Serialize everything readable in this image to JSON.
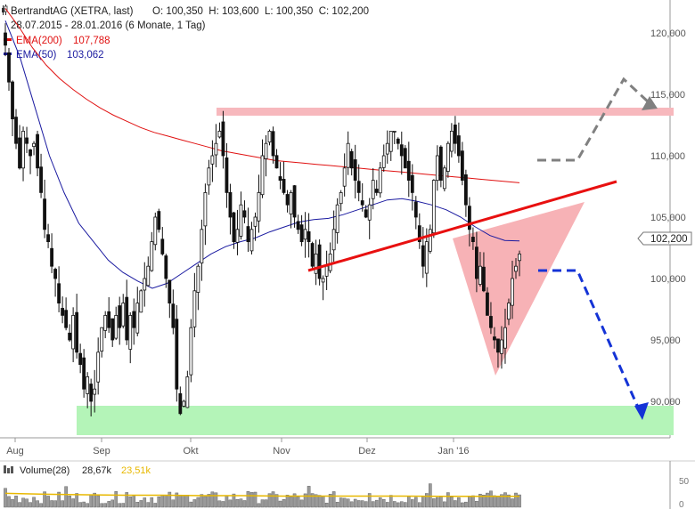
{
  "header": {
    "title": "BertrandtAG (XETRA, last)",
    "ohlc": "O: 100,350  H: 103,600  L: 100,350  C: 102,200",
    "range": "28.07.2015 - 28.01.2016 (6 Monate, 1 Tag)"
  },
  "legend": [
    {
      "label": "EMA(200)",
      "value": "107,788",
      "color": "#e01010"
    },
    {
      "label": "EMA(50)",
      "value": "103,062",
      "color": "#1a1aa0"
    }
  ],
  "volume": {
    "label": "Volume(28)",
    "v1": "28,67k",
    "v2": "23,51k",
    "v2_color": "#e8b800"
  },
  "last_price": "102,200",
  "y_ticks": [
    "120,000",
    "115,000",
    "110,000",
    "105,000",
    "100,000",
    "95,000",
    "90,000"
  ],
  "x_ticks": [
    "Aug",
    "Sep",
    "Okt",
    "Nov",
    "Dez",
    "Jan '16"
  ],
  "chart_data": {
    "type": "candlestick",
    "title": "BertrandtAG (XETRA, last)",
    "ylim": [
      86.8,
      122.0
    ],
    "x": [
      "28.07.2015",
      "28.01.2016"
    ],
    "close_series": [
      119,
      116,
      113,
      111,
      109,
      112,
      111,
      110,
      111,
      109,
      107,
      104,
      103,
      101,
      100,
      98,
      97,
      96,
      95,
      97,
      94,
      93,
      91,
      92,
      90,
      91,
      94,
      96,
      97,
      96,
      95,
      97,
      96,
      98,
      95,
      97,
      96,
      98,
      99,
      100,
      101,
      103,
      105,
      104,
      102,
      100,
      98,
      96,
      91,
      89,
      90,
      92,
      96,
      99,
      101,
      104,
      107,
      109,
      110,
      111,
      112,
      110,
      107,
      105,
      103,
      104,
      106,
      105,
      103,
      104,
      105,
      107,
      110,
      111,
      112,
      110,
      109,
      108,
      107,
      106,
      107,
      105,
      104,
      103,
      104,
      103,
      101,
      102,
      100,
      100,
      101,
      102,
      104,
      106,
      107,
      109,
      111,
      109,
      108,
      107,
      106,
      105,
      106,
      108,
      107,
      109,
      110,
      111,
      112,
      112,
      111,
      110,
      109,
      108,
      107,
      105,
      103,
      101,
      103,
      104,
      108,
      110,
      108,
      109,
      111,
      112,
      111,
      110,
      108,
      106,
      104,
      103,
      100,
      101,
      99,
      97,
      96,
      95,
      94,
      95,
      96,
      98,
      100,
      101,
      102
    ],
    "ema200": [
      122,
      120.5,
      118.8,
      117.4,
      116.3,
      115.4,
      114.6,
      113.9,
      113.3,
      112.8,
      112.3,
      111.9,
      111.6,
      111.3,
      111.0,
      110.7,
      110.4,
      110.2,
      110.0,
      109.8,
      109.6,
      109.5,
      109.4,
      109.3,
      109.2,
      109.1,
      109.0,
      108.9,
      108.8,
      108.7,
      108.6,
      108.5,
      108.4,
      108.3,
      108.2,
      108.1,
      108.0,
      107.9,
      107.8
    ],
    "ema50": [
      121,
      118,
      114,
      110,
      107,
      104.5,
      103,
      101.5,
      100.5,
      99.8,
      99.2,
      99.6,
      100.4,
      101.2,
      102.0,
      102.6,
      103.0,
      103.3,
      103.8,
      104.2,
      104.6,
      104.8,
      104.9,
      105.2,
      105.6,
      106.0,
      106.4,
      106.5,
      106.3,
      106.0,
      105.6,
      105.0,
      104.2,
      103.5,
      103.1,
      103.06
    ],
    "volume_avg_series": [
      30,
      28,
      27,
      26,
      26,
      25,
      25,
      24,
      24,
      24,
      24,
      23.5,
      23.5,
      23.51
    ],
    "annotations": [
      {
        "type": "resistance_zone",
        "from": 112.4,
        "to": 113.0
      },
      {
        "type": "support_zone",
        "from": 87.0,
        "to": 89.6
      },
      {
        "type": "trendline",
        "from": 99.5,
        "to": 106.5
      },
      {
        "type": "triangle"
      },
      {
        "type": "scenario_up",
        "color": "gray"
      },
      {
        "type": "scenario_down",
        "color": "blue"
      }
    ]
  }
}
